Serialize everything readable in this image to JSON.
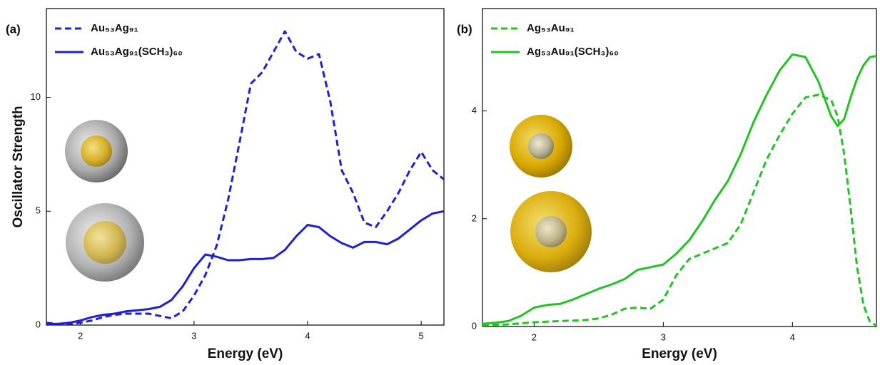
{
  "chart_data": [
    {
      "type": "line",
      "label": "(a)",
      "xlabel": "Energy (eV)",
      "ylabel": "Oscillator Strength",
      "x": [
        1.7,
        1.8,
        1.9,
        2.0,
        2.1,
        2.2,
        2.3,
        2.4,
        2.5,
        2.6,
        2.7,
        2.8,
        2.9,
        3.0,
        3.1,
        3.2,
        3.3,
        3.4,
        3.5,
        3.6,
        3.7,
        3.8,
        3.9,
        4.0,
        4.1,
        4.2,
        4.3,
        4.4,
        4.5,
        4.6,
        4.7,
        4.8,
        4.9,
        5.0,
        5.1,
        5.2
      ],
      "series": [
        {
          "name": "Au₅₃Ag₉₁",
          "color": "#1f1fd6",
          "dashed": true,
          "values": [
            0.1,
            0.05,
            0.05,
            0.1,
            0.2,
            0.35,
            0.45,
            0.5,
            0.5,
            0.5,
            0.4,
            0.3,
            0.6,
            1.3,
            2.2,
            3.5,
            5.5,
            8.0,
            10.6,
            11.1,
            12.0,
            12.9,
            12.0,
            11.7,
            11.9,
            9.8,
            6.8,
            5.8,
            4.5,
            4.3,
            5.0,
            5.8,
            6.8,
            7.6,
            6.8,
            6.4
          ]
        },
        {
          "name": "Au₅₃Ag₉₁(SCH₃)₆₀",
          "color": "#1f1fd6",
          "dashed": false,
          "values": [
            0.05,
            0.05,
            0.1,
            0.2,
            0.35,
            0.45,
            0.5,
            0.6,
            0.65,
            0.7,
            0.8,
            1.1,
            1.7,
            2.5,
            3.1,
            3.0,
            2.85,
            2.85,
            2.9,
            2.9,
            2.95,
            3.3,
            3.9,
            4.4,
            4.3,
            3.9,
            3.6,
            3.4,
            3.65,
            3.65,
            3.55,
            3.8,
            4.2,
            4.6,
            4.9,
            5.0
          ]
        }
      ],
      "xlim": [
        1.7,
        5.2
      ],
      "xticks": [
        2,
        3,
        4,
        5
      ],
      "ylim": [
        0,
        13.9
      ],
      "yticks": [
        0,
        5,
        10
      ],
      "legend": "upper left"
    },
    {
      "type": "line",
      "label": "(b)",
      "xlabel": "Energy (eV)",
      "x": [
        1.6,
        1.7,
        1.8,
        1.9,
        2.0,
        2.1,
        2.2,
        2.3,
        2.4,
        2.5,
        2.6,
        2.7,
        2.8,
        2.9,
        3.0,
        3.1,
        3.2,
        3.3,
        3.4,
        3.5,
        3.6,
        3.7,
        3.8,
        3.9,
        4.0,
        4.1,
        4.2,
        4.3,
        4.35,
        4.4,
        4.45,
        4.5,
        4.55,
        4.6,
        4.65
      ],
      "series": [
        {
          "name": "Ag₅₃Au₉₁",
          "color": "#22c322",
          "dashed": true,
          "values": [
            0.02,
            0.03,
            0.04,
            0.06,
            0.08,
            0.09,
            0.1,
            0.11,
            0.12,
            0.15,
            0.22,
            0.33,
            0.35,
            0.33,
            0.5,
            0.95,
            1.25,
            1.35,
            1.45,
            1.55,
            1.9,
            2.5,
            3.1,
            3.55,
            3.95,
            4.25,
            4.3,
            4.2,
            3.9,
            3.2,
            2.2,
            1.1,
            0.4,
            0.08,
            0.02
          ]
        },
        {
          "name": "Ag₅₃Au₉₁(SCH₃)₆₀",
          "color": "#22c322",
          "dashed": false,
          "values": [
            0.05,
            0.07,
            0.1,
            0.2,
            0.35,
            0.4,
            0.42,
            0.5,
            0.6,
            0.7,
            0.78,
            0.88,
            1.05,
            1.1,
            1.15,
            1.35,
            1.6,
            1.95,
            2.35,
            2.7,
            3.2,
            3.8,
            4.3,
            4.75,
            5.05,
            5.0,
            4.55,
            3.9,
            3.72,
            3.85,
            4.25,
            4.6,
            4.85,
            5.0,
            5.02
          ]
        }
      ],
      "xlim": [
        1.6,
        4.65
      ],
      "xticks": [
        2,
        3,
        4
      ],
      "ylim": [
        0,
        5.9
      ],
      "yticks": [
        0,
        2,
        4
      ],
      "legend": "upper left"
    }
  ]
}
